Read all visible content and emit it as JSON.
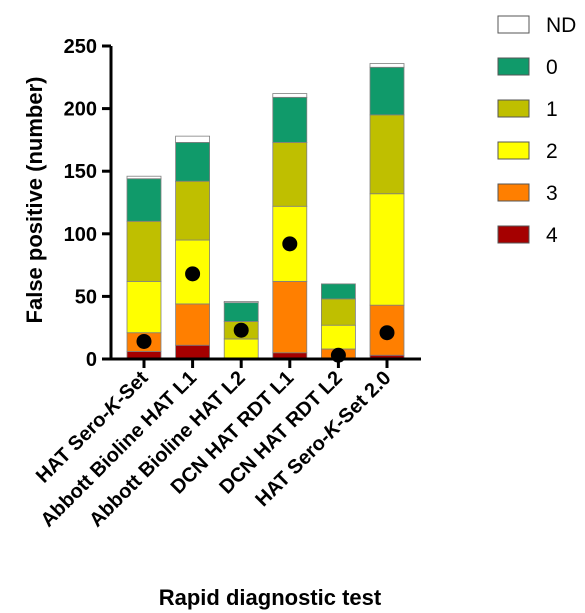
{
  "chart_data": {
    "type": "bar",
    "stacked": true,
    "xlabel": "Rapid diagnostic test",
    "ylabel": "False positive (number)",
    "ylim": [
      0,
      250
    ],
    "yticks": [
      0,
      50,
      100,
      150,
      200,
      250
    ],
    "grid": false,
    "legend_position": "right",
    "categories": [
      {
        "label": "HAT Sero-",
        "italic": "K",
        "tail": "-Set"
      },
      {
        "label": "Abbott Bioline HAT L1",
        "italic": "",
        "tail": ""
      },
      {
        "label": "Abbott Bioline HAT L2",
        "italic": "",
        "tail": ""
      },
      {
        "label": "DCN HAT RDT L1",
        "italic": "",
        "tail": ""
      },
      {
        "label": "DCN HAT RDT L2",
        "italic": "",
        "tail": ""
      },
      {
        "label": "HAT Sero-",
        "italic": "K",
        "tail": "-Set 2.0"
      }
    ],
    "series": [
      {
        "name": "4",
        "color": "#a50000",
        "values": [
          6,
          11,
          0,
          5,
          0,
          3
        ]
      },
      {
        "name": "3",
        "color": "#ff7f00",
        "values": [
          15,
          33,
          0,
          57,
          8,
          40
        ]
      },
      {
        "name": "2",
        "color": "#ffff00",
        "values": [
          41,
          51,
          16,
          60,
          19,
          89
        ]
      },
      {
        "name": "1",
        "color": "#bfbf00",
        "values": [
          48,
          47,
          14,
          51,
          21,
          63
        ]
      },
      {
        "name": "0",
        "color": "#109a6a",
        "values": [
          34,
          31,
          15,
          36,
          12,
          38
        ]
      },
      {
        "name": "ND",
        "color": "#ffffff",
        "values": [
          2,
          5,
          1,
          3,
          0,
          3
        ]
      }
    ],
    "dots": {
      "color": "#000000",
      "values": [
        14,
        68,
        23,
        92,
        3,
        21
      ]
    }
  }
}
